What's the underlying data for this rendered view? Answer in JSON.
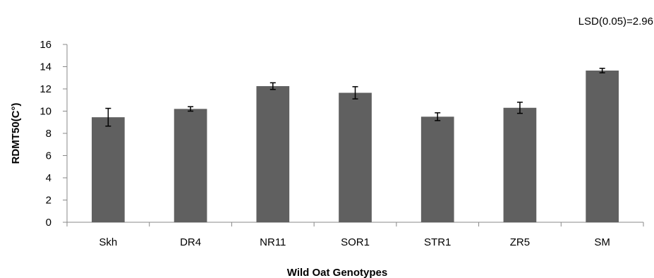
{
  "chart_data": {
    "type": "bar",
    "categories": [
      "Skh",
      "DR4",
      "NR11",
      "SOR1",
      "STR1",
      "ZR5",
      "SM"
    ],
    "values": [
      9.45,
      10.2,
      12.25,
      11.65,
      9.5,
      10.3,
      13.65
    ],
    "error": [
      0.8,
      0.2,
      0.3,
      0.55,
      0.35,
      0.5,
      0.2
    ],
    "xlabel": "Wild Oat Genotypes",
    "ylabel": "RDMT50(C°)",
    "ylim": [
      0,
      16
    ],
    "yticks": [
      0,
      2,
      4,
      6,
      8,
      10,
      12,
      14,
      16
    ],
    "annotation": "LSD(0.05)=2.96",
    "grid": false,
    "bar_color": "#606060"
  }
}
